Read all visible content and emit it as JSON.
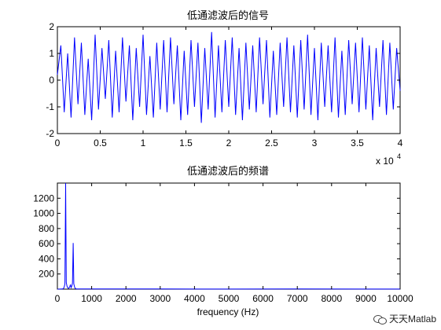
{
  "chart_data": [
    {
      "type": "line",
      "title": "低通滤波后的信号",
      "xlim": [
        0,
        40000
      ],
      "ylim": [
        -2,
        2
      ],
      "xticks": [
        "0",
        "0.5",
        "1",
        "1.5",
        "2",
        "2.5",
        "3",
        "3.5",
        "4"
      ],
      "yticks": [
        "-2",
        "-1",
        "0",
        "1",
        "2"
      ],
      "x_exponent_label": "x 10",
      "x_exponent": "4",
      "series": [
        {
          "color": "#0000ff",
          "x": [
            0,
            400,
            800,
            1200,
            1600,
            2000,
            2400,
            2800,
            3200,
            3600,
            4000,
            4400,
            4800,
            5200,
            5600,
            6000,
            6400,
            6800,
            7200,
            7600,
            8000,
            8400,
            8800,
            9200,
            9600,
            10000,
            10400,
            10800,
            11200,
            11600,
            12000,
            12400,
            12800,
            13200,
            13600,
            14000,
            14400,
            14800,
            15200,
            15600,
            16000,
            16400,
            16800,
            17200,
            17600,
            18000,
            18400,
            18800,
            19200,
            19600,
            20000,
            20400,
            20800,
            21200,
            21600,
            22000,
            22400,
            22800,
            23200,
            23600,
            24000,
            24400,
            24800,
            25200,
            25600,
            26000,
            26400,
            26800,
            27200,
            27600,
            28000,
            28400,
            28800,
            29200,
            29600,
            30000,
            30400,
            30800,
            31200,
            31600,
            32000,
            32400,
            32800,
            33200,
            33600,
            34000,
            34400,
            34800,
            35200,
            35600,
            36000,
            36400,
            36800,
            37200,
            37600,
            38000,
            38400,
            38800,
            39200,
            39600,
            40000
          ],
          "y": [
            0.2,
            1.3,
            -1.2,
            1.0,
            -1.4,
            1.6,
            -0.9,
            1.4,
            -1.3,
            0.8,
            -1.5,
            1.7,
            -1.1,
            1.2,
            -0.7,
            1.5,
            -1.4,
            1.1,
            -1.2,
            1.6,
            -0.8,
            1.3,
            -1.5,
            1.2,
            -1.0,
            1.7,
            -1.3,
            0.9,
            -1.4,
            1.4,
            -1.1,
            1.5,
            -1.2,
            1.6,
            -0.9,
            1.3,
            -1.5,
            1.1,
            -1.3,
            1.5,
            -1.0,
            1.4,
            -1.6,
            1.2,
            -1.1,
            1.8,
            -1.4,
            1.3,
            -1.2,
            1.5,
            -1.0,
            1.6,
            -1.3,
            1.2,
            -1.5,
            1.4,
            -1.1,
            1.3,
            -1.2,
            1.6,
            -0.9,
            1.5,
            -1.4,
            1.1,
            -1.3,
            1.4,
            -1.0,
            1.6,
            -1.2,
            1.3,
            -1.4,
            1.5,
            -1.1,
            1.7,
            -1.3,
            1.2,
            -1.5,
            1.4,
            -1.0,
            1.3,
            -1.2,
            1.6,
            -1.4,
            1.1,
            -1.3,
            1.5,
            -0.9,
            1.4,
            -1.2,
            1.6,
            -1.1,
            1.3,
            -1.5,
            1.2,
            -1.0,
            1.5,
            -1.3,
            1.4,
            -1.1,
            1.2,
            -0.4
          ]
        }
      ]
    },
    {
      "type": "line",
      "title": "低通滤波后的频谱",
      "xlabel": "frequency (Hz)",
      "xlim": [
        0,
        10000
      ],
      "ylim": [
        0,
        1400
      ],
      "xticks": [
        "0",
        "1000",
        "2000",
        "3000",
        "4000",
        "5000",
        "6000",
        "7000",
        "8000",
        "9000",
        "10000"
      ],
      "yticks": [
        "200",
        "400",
        "600",
        "800",
        "1000",
        "1200"
      ],
      "series": [
        {
          "color": "#0000ff",
          "x": [
            0,
            150,
            180,
            200,
            220,
            240,
            260,
            280,
            300,
            320,
            340,
            360,
            380,
            400,
            420,
            440,
            460,
            480,
            500,
            520,
            540,
            560,
            600,
            800,
            1500,
            3000,
            5000,
            7000,
            9000,
            10000
          ],
          "y": [
            0,
            2,
            8,
            30,
            70,
            1400,
            90,
            40,
            20,
            10,
            15,
            30,
            60,
            20,
            40,
            80,
            610,
            70,
            30,
            10,
            5,
            3,
            2,
            3,
            2,
            2,
            1,
            2,
            1,
            1
          ]
        }
      ]
    }
  ],
  "watermark": {
    "text": "天天Matlab",
    "icon": "wechat-icon"
  }
}
